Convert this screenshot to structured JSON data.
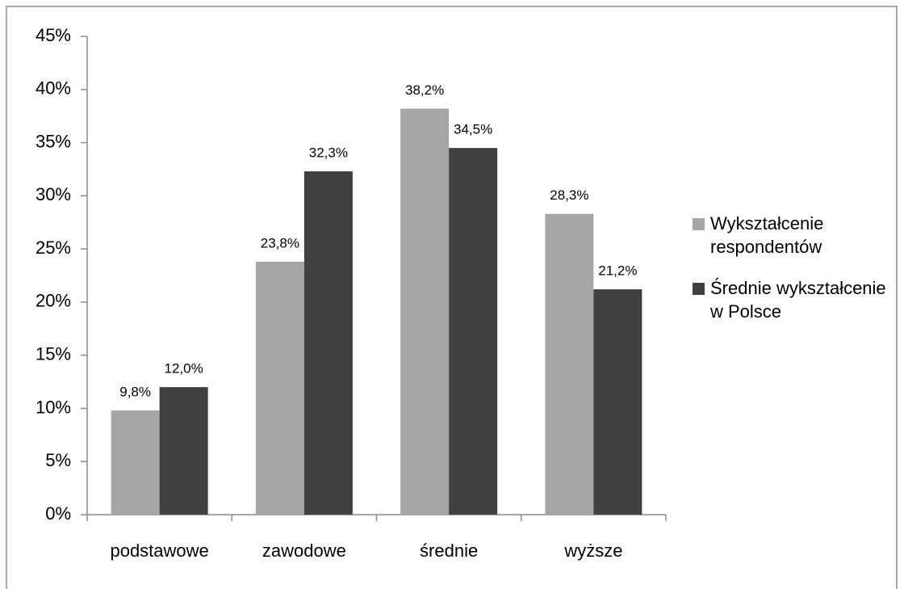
{
  "chart_data": {
    "type": "bar",
    "categories": [
      "podstawowe",
      "zawodowe",
      "średnie",
      "wyższe"
    ],
    "series": [
      {
        "name": "Wykształcenie respondentów",
        "color": "#a6a6a6",
        "values": [
          9.8,
          23.8,
          38.2,
          28.3
        ],
        "value_labels": [
          "9,8%",
          "23,8%",
          "38,2%",
          "28,3%"
        ]
      },
      {
        "name": "Średnie wykształcenie w Polsce",
        "color": "#404040",
        "values": [
          12.0,
          32.3,
          34.5,
          21.2
        ],
        "value_labels": [
          "12,0%",
          "32,3%",
          "34,5%",
          "21,2%"
        ]
      }
    ],
    "ylim": [
      0,
      45
    ],
    "yticks": [
      {
        "value": 0,
        "label": "0%"
      },
      {
        "value": 5,
        "label": "5%"
      },
      {
        "value": 10,
        "label": "10%"
      },
      {
        "value": 15,
        "label": "15%"
      },
      {
        "value": 20,
        "label": "20%"
      },
      {
        "value": 25,
        "label": "25%"
      },
      {
        "value": 30,
        "label": "30%"
      },
      {
        "value": 35,
        "label": "35%"
      },
      {
        "value": 40,
        "label": "40%"
      },
      {
        "value": 45,
        "label": "45%"
      }
    ],
    "legend": "right"
  }
}
